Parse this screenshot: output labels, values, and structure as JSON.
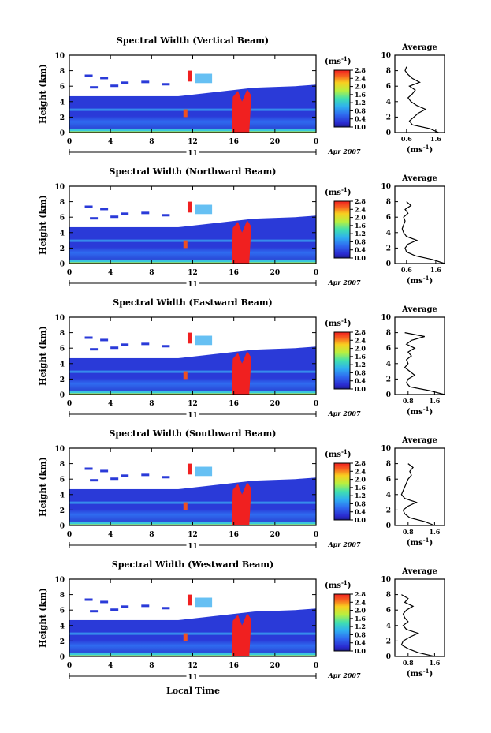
{
  "figure": {
    "xlabel": "Local Time",
    "date_label": "Apr 2007",
    "day_label": "11",
    "ylabel": "Height (km)",
    "cbar_unit": "(ms",
    "cbar_exp": "-1",
    "cbar_unit_close": ")",
    "avg_title": "Average",
    "avg_xlabel": "(ms",
    "avg_xexp": "-1",
    "avg_xclose": ")"
  },
  "chart_data": [
    {
      "type": "heatmap",
      "title": "Spectral Width (Vertical Beam)",
      "xlim": [
        0,
        24
      ],
      "ylim": [
        0,
        10
      ],
      "xticks": [
        "0",
        "4",
        "8",
        "12",
        "16",
        "20",
        "0"
      ],
      "yticks": [
        "0",
        "2",
        "4",
        "6",
        "8",
        "10"
      ],
      "colorbar": {
        "min": 0.0,
        "max": 2.8,
        "ticks": [
          "0.0",
          "0.4",
          "0.8",
          "1.2",
          "1.6",
          "2.0",
          "2.4",
          "2.8"
        ]
      },
      "average": {
        "xticks": [
          "0.6",
          "1.6"
        ],
        "yticks": [
          "0",
          "2",
          "4",
          "6",
          "8",
          "10"
        ],
        "xlim": [
          0.2,
          1.9
        ],
        "profile": [
          [
            0.0,
            1.7
          ],
          [
            0.5,
            1.4
          ],
          [
            1.0,
            0.8
          ],
          [
            1.5,
            0.7
          ],
          [
            2.0,
            0.85
          ],
          [
            2.5,
            1.0
          ],
          [
            3.0,
            1.25
          ],
          [
            3.5,
            0.95
          ],
          [
            4.0,
            0.75
          ],
          [
            4.5,
            0.65
          ],
          [
            5.0,
            0.8
          ],
          [
            5.5,
            0.9
          ],
          [
            6.0,
            0.7
          ],
          [
            6.5,
            1.05
          ],
          [
            7.0,
            0.8
          ],
          [
            7.5,
            0.65
          ],
          [
            8.0,
            0.55
          ],
          [
            8.5,
            0.6
          ]
        ]
      }
    },
    {
      "type": "heatmap",
      "title": "Spectral Width (Northward Beam)",
      "xlim": [
        0,
        24
      ],
      "ylim": [
        0,
        10
      ],
      "xticks": [
        "0",
        "4",
        "8",
        "12",
        "16",
        "20",
        "0"
      ],
      "yticks": [
        "0",
        "2",
        "4",
        "6",
        "8",
        "10"
      ],
      "colorbar": {
        "min": 0.0,
        "max": 2.8,
        "ticks": [
          "0.0",
          "0.4",
          "0.8",
          "1.2",
          "1.6",
          "2.0",
          "2.4",
          "2.8"
        ]
      },
      "average": {
        "xticks": [
          "0.6",
          "1.6"
        ],
        "yticks": [
          "0",
          "2",
          "4",
          "6",
          "8",
          "10"
        ],
        "xlim": [
          0.2,
          1.9
        ],
        "profile": [
          [
            0.0,
            1.9
          ],
          [
            0.5,
            1.5
          ],
          [
            1.0,
            0.9
          ],
          [
            1.5,
            0.6
          ],
          [
            2.0,
            0.55
          ],
          [
            2.5,
            0.65
          ],
          [
            3.0,
            0.95
          ],
          [
            3.5,
            0.6
          ],
          [
            4.0,
            0.5
          ],
          [
            4.5,
            0.45
          ],
          [
            5.0,
            0.5
          ],
          [
            5.5,
            0.55
          ],
          [
            6.0,
            0.5
          ],
          [
            6.5,
            0.65
          ],
          [
            7.0,
            0.55
          ],
          [
            7.5,
            0.75
          ],
          [
            8.0,
            0.6
          ]
        ]
      }
    },
    {
      "type": "heatmap",
      "title": "Spectral Width (Eastward Beam)",
      "xlim": [
        0,
        24
      ],
      "ylim": [
        0,
        10
      ],
      "xticks": [
        "0",
        "4",
        "8",
        "12",
        "16",
        "20",
        "0"
      ],
      "yticks": [
        "0",
        "2",
        "4",
        "6",
        "8",
        "10"
      ],
      "colorbar": {
        "min": 0.0,
        "max": 2.8,
        "ticks": [
          "0.0",
          "0.4",
          "0.8",
          "1.2",
          "1.6",
          "2.0",
          "2.4",
          "2.8"
        ]
      },
      "average": {
        "xticks": [
          "0.8",
          "1.6"
        ],
        "yticks": [
          "0",
          "2",
          "4",
          "6",
          "8",
          "10"
        ],
        "xlim": [
          0.4,
          1.9
        ],
        "profile": [
          [
            0.0,
            1.9
          ],
          [
            0.5,
            1.45
          ],
          [
            1.0,
            0.85
          ],
          [
            1.5,
            0.75
          ],
          [
            2.0,
            0.8
          ],
          [
            2.5,
            1.0
          ],
          [
            3.0,
            0.85
          ],
          [
            3.5,
            0.7
          ],
          [
            4.0,
            0.8
          ],
          [
            4.5,
            0.75
          ],
          [
            5.0,
            0.9
          ],
          [
            5.5,
            0.8
          ],
          [
            6.0,
            1.0
          ],
          [
            6.5,
            0.75
          ],
          [
            7.0,
            0.9
          ],
          [
            7.5,
            1.3
          ],
          [
            8.0,
            0.7
          ]
        ]
      }
    },
    {
      "type": "heatmap",
      "title": "Spectral Width (Southward Beam)",
      "xlim": [
        0,
        24
      ],
      "ylim": [
        0,
        10
      ],
      "xticks": [
        "0",
        "4",
        "8",
        "12",
        "16",
        "20",
        "0"
      ],
      "yticks": [
        "0",
        "2",
        "4",
        "6",
        "8",
        "10"
      ],
      "colorbar": {
        "min": 0.0,
        "max": 2.8,
        "ticks": [
          "0.0",
          "0.4",
          "0.8",
          "1.2",
          "1.6",
          "2.0",
          "2.4",
          "2.8"
        ]
      },
      "average": {
        "xticks": [
          "0.8",
          "1.6"
        ],
        "yticks": [
          "0",
          "2",
          "4",
          "6",
          "8",
          "10"
        ],
        "xlim": [
          0.4,
          1.9
        ],
        "profile": [
          [
            0.0,
            1.6
          ],
          [
            0.5,
            1.3
          ],
          [
            1.0,
            0.85
          ],
          [
            1.5,
            0.7
          ],
          [
            2.0,
            0.65
          ],
          [
            2.5,
            0.8
          ],
          [
            3.0,
            1.05
          ],
          [
            3.5,
            0.7
          ],
          [
            4.0,
            0.6
          ],
          [
            4.5,
            0.65
          ],
          [
            5.0,
            0.7
          ],
          [
            5.5,
            0.75
          ],
          [
            6.0,
            0.8
          ],
          [
            6.5,
            0.9
          ],
          [
            7.0,
            0.85
          ],
          [
            7.5,
            0.95
          ],
          [
            8.0,
            0.8
          ]
        ]
      }
    },
    {
      "type": "heatmap",
      "title": "Spectral Width (Westward Beam)",
      "xlim": [
        0,
        24
      ],
      "ylim": [
        0,
        10
      ],
      "xticks": [
        "0",
        "4",
        "8",
        "12",
        "16",
        "20",
        "0"
      ],
      "yticks": [
        "0",
        "2",
        "4",
        "6",
        "8",
        "10"
      ],
      "colorbar": {
        "min": 0.0,
        "max": 2.8,
        "ticks": [
          "0.0",
          "0.4",
          "0.8",
          "1.2",
          "1.6",
          "2.0",
          "2.4",
          "2.8"
        ]
      },
      "average": {
        "xticks": [
          "0.8",
          "1.6"
        ],
        "yticks": [
          "0",
          "2",
          "4",
          "6",
          "8",
          "10"
        ],
        "xlim": [
          0.4,
          1.9
        ],
        "profile": [
          [
            0.0,
            1.6
          ],
          [
            0.5,
            1.1
          ],
          [
            1.0,
            0.8
          ],
          [
            1.5,
            0.6
          ],
          [
            2.0,
            0.65
          ],
          [
            2.5,
            0.85
          ],
          [
            3.0,
            1.1
          ],
          [
            3.5,
            0.75
          ],
          [
            4.0,
            0.65
          ],
          [
            4.5,
            0.8
          ],
          [
            5.0,
            0.7
          ],
          [
            5.5,
            0.65
          ],
          [
            6.0,
            0.75
          ],
          [
            6.5,
            0.95
          ],
          [
            7.0,
            0.7
          ],
          [
            7.5,
            0.8
          ],
          [
            8.0,
            0.6
          ]
        ]
      }
    }
  ]
}
